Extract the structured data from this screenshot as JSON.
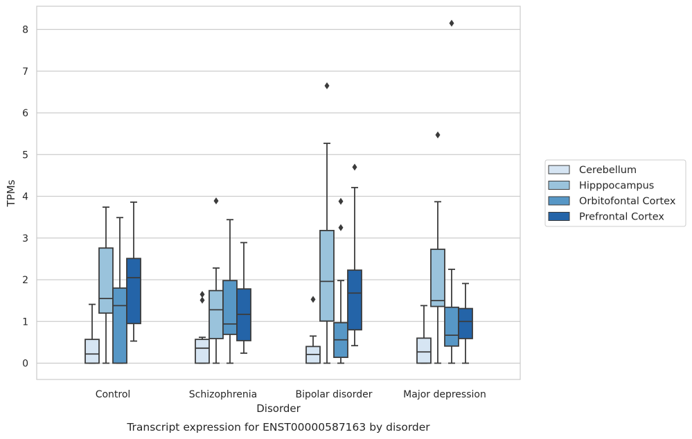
{
  "caption": "Transcript expression for ENST00000587163 by disorder",
  "chart_data": {
    "type": "box",
    "xlabel": "Disorder",
    "ylabel": "TPMs",
    "ylim": [
      -0.4,
      8.55
    ],
    "yticks": [
      0,
      1,
      2,
      3,
      4,
      5,
      6,
      7,
      8
    ],
    "grid": "horizontal",
    "legend_position": "right",
    "categories": [
      "Control",
      "Schizophrenia",
      "Bipolar disorder",
      "Major depression"
    ],
    "series": [
      {
        "name": "Cerebellum",
        "color": "#d6e5f3",
        "boxes": [
          {
            "whisker_low": 0.0,
            "q1": 0.0,
            "median": 0.22,
            "q3": 0.57,
            "whisker_high": 1.41,
            "outliers": []
          },
          {
            "whisker_low": 0.0,
            "q1": 0.0,
            "median": 0.36,
            "q3": 0.57,
            "whisker_high": 0.62,
            "outliers": [
              1.51,
              1.65
            ]
          },
          {
            "whisker_low": 0.0,
            "q1": 0.0,
            "median": 0.21,
            "q3": 0.4,
            "whisker_high": 0.65,
            "outliers": [
              1.53
            ]
          },
          {
            "whisker_low": 0.0,
            "q1": 0.0,
            "median": 0.27,
            "q3": 0.6,
            "whisker_high": 1.38,
            "outliers": []
          }
        ]
      },
      {
        "name": "Hipppocampus",
        "color": "#9ac3dc",
        "boxes": [
          {
            "whisker_low": 0.0,
            "q1": 1.2,
            "median": 1.55,
            "q3": 2.76,
            "whisker_high": 3.74,
            "outliers": []
          },
          {
            "whisker_low": 0.0,
            "q1": 0.59,
            "median": 1.28,
            "q3": 1.74,
            "whisker_high": 2.28,
            "outliers": [
              3.89
            ]
          },
          {
            "whisker_low": 0.0,
            "q1": 1.01,
            "median": 1.96,
            "q3": 3.18,
            "whisker_high": 5.27,
            "outliers": [
              6.65
            ]
          },
          {
            "whisker_low": 0.0,
            "q1": 1.36,
            "median": 1.5,
            "q3": 2.73,
            "whisker_high": 3.87,
            "outliers": [
              5.47
            ]
          }
        ]
      },
      {
        "name": "Orbitofontal Cortex",
        "color": "#5797c6",
        "boxes": [
          {
            "whisker_low": 0.0,
            "q1": 0.0,
            "median": 1.38,
            "q3": 1.8,
            "whisker_high": 3.49,
            "outliers": []
          },
          {
            "whisker_low": 0.0,
            "q1": 0.69,
            "median": 0.94,
            "q3": 1.98,
            "whisker_high": 3.44,
            "outliers": []
          },
          {
            "whisker_low": 0.0,
            "q1": 0.14,
            "median": 0.56,
            "q3": 0.97,
            "whisker_high": 1.98,
            "outliers": [
              3.25,
              3.88
            ]
          },
          {
            "whisker_low": 0.0,
            "q1": 0.41,
            "median": 0.67,
            "q3": 1.34,
            "whisker_high": 2.25,
            "outliers": [
              8.15
            ]
          }
        ]
      },
      {
        "name": "Prefrontal Cortex",
        "color": "#2464a8",
        "boxes": [
          {
            "whisker_low": 0.53,
            "q1": 0.95,
            "median": 2.05,
            "q3": 2.51,
            "whisker_high": 3.86,
            "outliers": []
          },
          {
            "whisker_low": 0.24,
            "q1": 0.54,
            "median": 1.17,
            "q3": 1.78,
            "whisker_high": 2.89,
            "outliers": []
          },
          {
            "whisker_low": 0.42,
            "q1": 0.8,
            "median": 1.68,
            "q3": 2.23,
            "whisker_high": 4.21,
            "outliers": [
              4.7
            ]
          },
          {
            "whisker_low": 0.0,
            "q1": 0.59,
            "median": 1.0,
            "q3": 1.31,
            "whisker_high": 1.91,
            "outliers": []
          }
        ]
      }
    ]
  }
}
